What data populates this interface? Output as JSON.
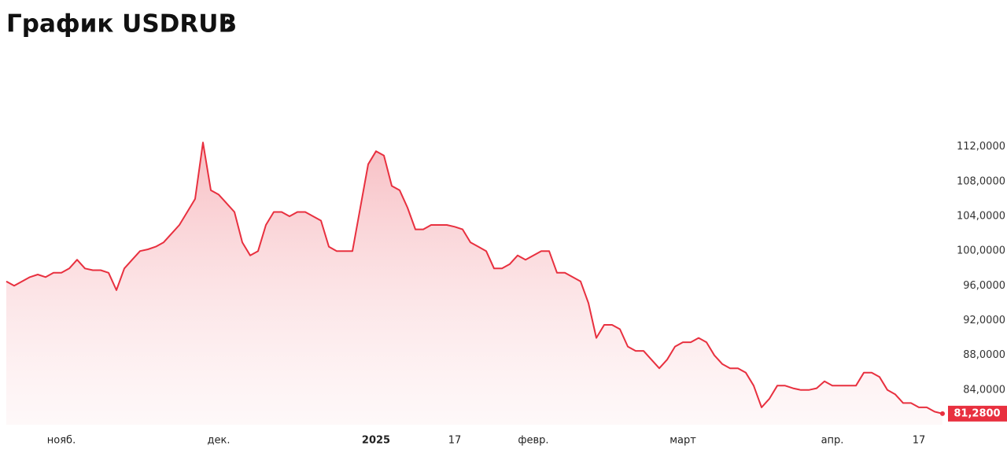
{
  "chart_data": {
    "type": "area",
    "title": "График USDRUB",
    "color": "#e8303f",
    "categories": [
      null,
      null,
      null,
      null,
      null,
      null,
      null,
      "нояб.",
      null,
      null,
      null,
      null,
      null,
      null,
      null,
      null,
      null,
      null,
      null,
      null,
      null,
      null,
      null,
      null,
      null,
      null,
      null,
      "дек.",
      null,
      null,
      null,
      null,
      null,
      null,
      null,
      null,
      null,
      null,
      null,
      null,
      null,
      null,
      null,
      null,
      null,
      null,
      null,
      "2025",
      null,
      null,
      null,
      null,
      null,
      null,
      null,
      null,
      null,
      "17",
      null,
      null,
      null,
      null,
      null,
      null,
      null,
      null,
      null,
      "февр.",
      null,
      null,
      null,
      null,
      null,
      null,
      null,
      null,
      null,
      null,
      null,
      null,
      null,
      null,
      null,
      null,
      null,
      null,
      "март",
      null,
      null,
      null,
      null,
      null,
      null,
      null,
      null,
      null,
      null,
      null,
      null,
      null,
      null,
      null,
      null,
      null,
      null,
      "апр.",
      null,
      null,
      null,
      null,
      null,
      null,
      null,
      null,
      null,
      null,
      "17",
      null,
      null,
      null
    ],
    "values": [
      96.5,
      96,
      96.5,
      97,
      97.3,
      97,
      97.5,
      97.5,
      98,
      99,
      98,
      97.8,
      97.8,
      97.5,
      95.5,
      98,
      99,
      100,
      100.2,
      100.5,
      101,
      102,
      103,
      104.5,
      106,
      112.5,
      107,
      106.5,
      105.5,
      104.5,
      101,
      99.5,
      100,
      103,
      104.5,
      104.5,
      104,
      104.5,
      104.5,
      104,
      103.5,
      100.5,
      100,
      100,
      100,
      105,
      110,
      111.5,
      111,
      107.5,
      107,
      105,
      102.5,
      102.5,
      103,
      103,
      103,
      102.8,
      102.5,
      101,
      100.5,
      100,
      98,
      98,
      98.5,
      99.5,
      99,
      99.5,
      100,
      100,
      97.5,
      97.5,
      97,
      96.5,
      94,
      90,
      91.5,
      91.5,
      91,
      89,
      88.5,
      88.5,
      87.5,
      86.5,
      87.5,
      89,
      89.5,
      89.5,
      90,
      89.5,
      88,
      87,
      86.5,
      86.5,
      86,
      84.5,
      82,
      83,
      84.5,
      84.5,
      84.2,
      84,
      84,
      84.2,
      85,
      84.5,
      84.5,
      84.5,
      84.5,
      86,
      86,
      85.5,
      84,
      83.5,
      82.5,
      82.5,
      82,
      82,
      81.5,
      81.28
    ],
    "last_value_label": "81,2800",
    "ylim": [
      80,
      128
    ],
    "yticks": [
      {
        "value": 84,
        "label": "84,0000"
      },
      {
        "value": 88,
        "label": "88,0000"
      },
      {
        "value": 92,
        "label": "92,0000"
      },
      {
        "value": 96,
        "label": "96,0000"
      },
      {
        "value": 100,
        "label": "100,0000"
      },
      {
        "value": 104,
        "label": "104,0000"
      },
      {
        "value": 108,
        "label": "108,0000"
      },
      {
        "value": 112,
        "label": "112,0000"
      }
    ]
  }
}
